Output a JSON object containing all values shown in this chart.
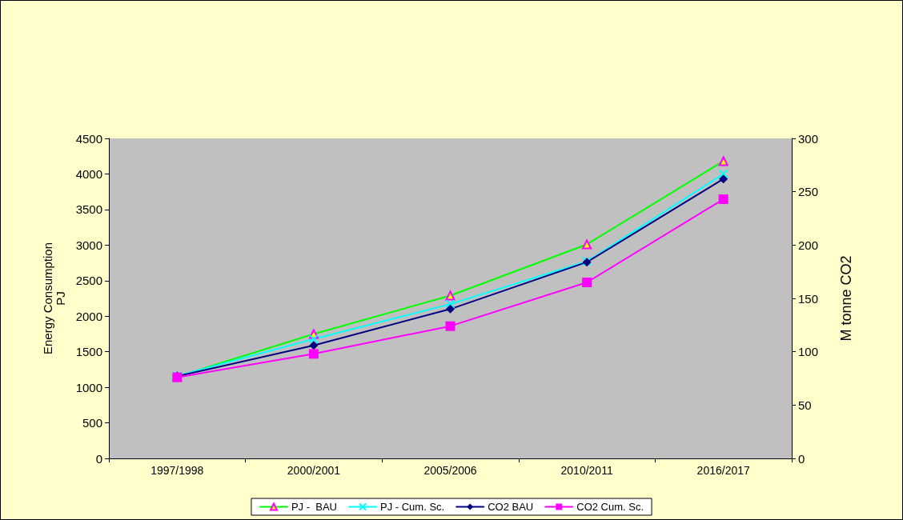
{
  "chart_data": {
    "type": "line",
    "ylabel": "Energy Consumption\nPJ",
    "y2label": "M tonne CO2",
    "categories": [
      "1997/1998",
      "2000/2001",
      "2005/2006",
      "2010/2011",
      "2016/2017"
    ],
    "ylim": [
      0,
      4500
    ],
    "yticks": [
      0,
      500,
      1000,
      1500,
      2000,
      2500,
      3000,
      3500,
      4000,
      4500
    ],
    "y2lim": [
      0,
      300
    ],
    "y2ticks": [
      0,
      50,
      100,
      150,
      200,
      250,
      300
    ],
    "grid": false,
    "legend": "bottom",
    "series": [
      {
        "name": "PJ -  BAU",
        "color": "#00ff00",
        "marker": "triangle",
        "values": [
          1150,
          1750,
          2290,
          3010,
          4180
        ]
      },
      {
        "name": "PJ - Cum. Sc.",
        "color": "#00ffff",
        "marker": "cross",
        "values": [
          1160,
          1680,
          2170,
          2770,
          4000
        ]
      },
      {
        "name": "CO2 BAU",
        "color": "#000080",
        "marker": "diamond",
        "axis": "y2",
        "values": [
          77,
          106,
          140,
          184,
          262
        ]
      },
      {
        "name": "CO2 Cum. Sc.",
        "color": "#ff00ff",
        "marker": "square",
        "axis": "y2",
        "values": [
          76,
          98,
          124,
          165,
          243
        ]
      }
    ]
  }
}
